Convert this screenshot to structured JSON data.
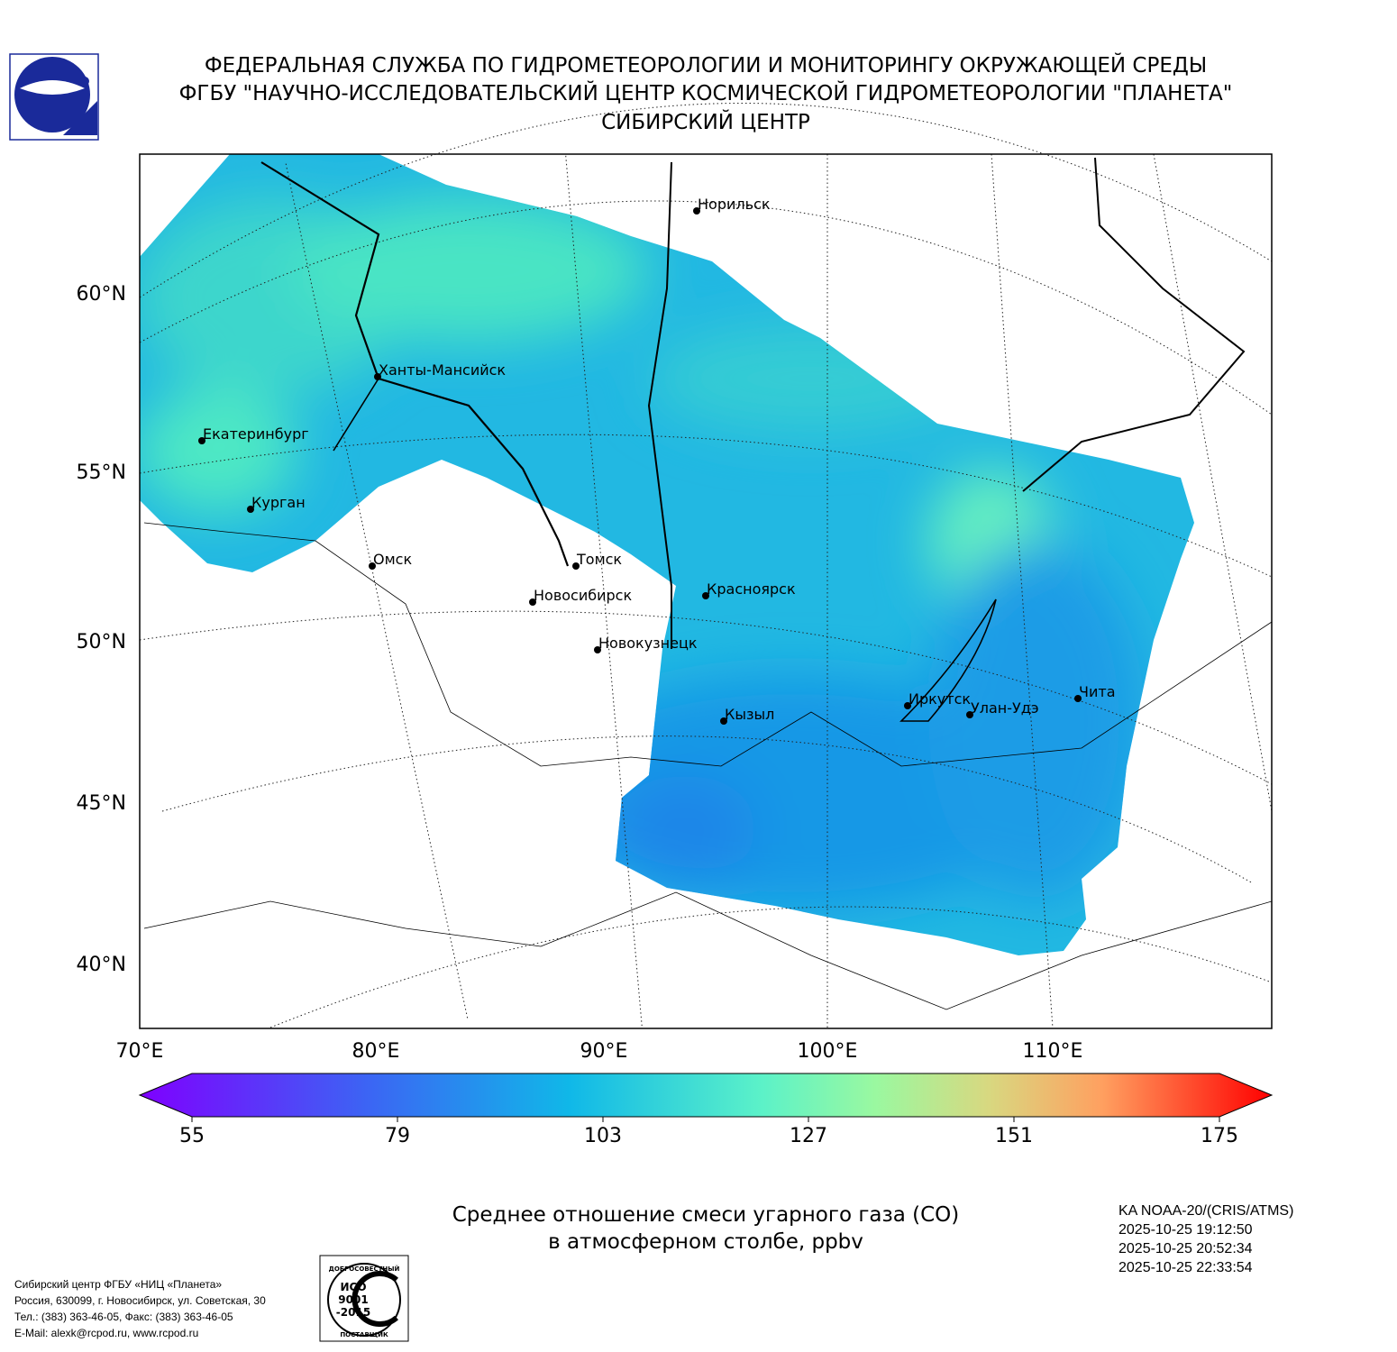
{
  "header": {
    "lines": [
      "ФЕДЕРАЛЬНАЯ СЛУЖБА ПО ГИДРОМЕТЕОРОЛОГИИ И МОНИТОРИНГУ ОКРУЖАЮЩЕЙ СРЕДЫ",
      "ФГБУ \"НАУЧНО-ИССЛЕДОВАТЕЛЬСКИЙ ЦЕНТР КОСМИЧЕСКОЙ ГИДРОМЕТЕОРОЛОГИИ \"ПЛАНЕТА\"",
      "СИБИРСКИЙ ЦЕНТР"
    ]
  },
  "map": {
    "lat_labels": [
      "60°N",
      "55°N",
      "50°N",
      "45°N",
      "40°N"
    ],
    "lon_labels": [
      "70°E",
      "80°E",
      "90°E",
      "100°E",
      "110°E"
    ],
    "cities": [
      "Норильск",
      "Ханты-Мансийск",
      "Екатеринбург",
      "Курган",
      "Омск",
      "Томск",
      "Новосибирск",
      "Красноярск",
      "Новокузнецк",
      "Кызыл",
      "Иркутск",
      "Улан-Удэ",
      "Чита"
    ]
  },
  "colorbar": {
    "range": [
      55,
      175
    ],
    "ticks": [
      55,
      79,
      103,
      127,
      151,
      175
    ]
  },
  "caption": {
    "lines": [
      "Среднее отношение смеси угарного газа (CO)",
      "в атмосферном столбе, ppbv"
    ]
  },
  "satellite": {
    "lines": [
      "KA NOAA-20/(CRIS/ATMS)",
      "2025-10-25 19:12:50",
      "2025-10-25 20:52:34",
      "2025-10-25 22:33:54"
    ]
  },
  "footer": {
    "lines": [
      "Сибирский центр ФГБУ «НИЦ «Планета»",
      "Россия, 630099, г. Новосибирск, ул. Советская, 30",
      "Тел.: (383) 363-46-05, Факс: (383) 363-46-05",
      "E-Mail: alexk@rcpod.ru, www.rcpod.ru"
    ]
  },
  "certificate": {
    "texts": [
      "ДОБРОСОВЕСТНЫЙ",
      "ИСО",
      "9001",
      "-2015",
      "ПОСТАВЩИК"
    ]
  }
}
